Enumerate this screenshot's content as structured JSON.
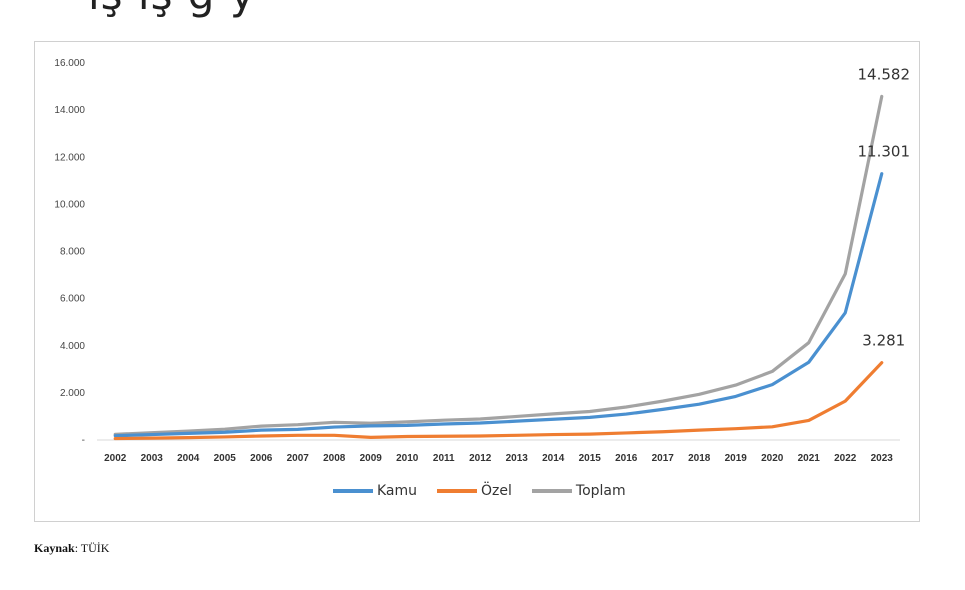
{
  "page": {
    "title_fragment": "ış ış  g                        y",
    "source_label": "Kaynak",
    "source_value": ": TÜİK"
  },
  "colors": {
    "kamu": "#4a90d0",
    "ozel": "#ef7d31",
    "toplam": "#a3a3a3"
  },
  "chart_data": {
    "type": "line",
    "title": "",
    "xlabel": "",
    "ylabel": "",
    "ylim": [
      0,
      16000
    ],
    "yticks": [
      0,
      2000,
      4000,
      6000,
      8000,
      10000,
      12000,
      14000,
      16000
    ],
    "ytick_labels": [
      "-",
      "2.000",
      "4.000",
      "6.000",
      "8.000",
      "10.000",
      "12.000",
      "14.000",
      "16.000"
    ],
    "grid": false,
    "legend_position": "bottom",
    "x": [
      "2002",
      "2003",
      "2004",
      "2005",
      "2006",
      "2007",
      "2008",
      "2009",
      "2010",
      "2011",
      "2012",
      "2013",
      "2014",
      "2015",
      "2016",
      "2017",
      "2018",
      "2019",
      "2020",
      "2021",
      "2022",
      "2023"
    ],
    "series": [
      {
        "name": "Kamu",
        "color": "#4a90d0",
        "values": [
          180,
          230,
          280,
          330,
          420,
          450,
          550,
          600,
          620,
          680,
          720,
          800,
          880,
          960,
          1100,
          1300,
          1520,
          1850,
          2350,
          3300,
          5400,
          11301
        ],
        "end_label": "11.301"
      },
      {
        "name": "Özel",
        "color": "#ef7d31",
        "values": [
          60,
          80,
          100,
          130,
          170,
          200,
          200,
          110,
          150,
          160,
          170,
          200,
          230,
          250,
          300,
          350,
          420,
          480,
          560,
          830,
          1650,
          3281
        ],
        "end_label": "3.281"
      },
      {
        "name": "Toplam",
        "color": "#a3a3a3",
        "values": [
          240,
          310,
          380,
          460,
          590,
          650,
          750,
          710,
          770,
          840,
          890,
          1000,
          1110,
          1210,
          1400,
          1650,
          1940,
          2330,
          2910,
          4130,
          7050,
          14582
        ],
        "end_label": "14.582"
      }
    ]
  }
}
